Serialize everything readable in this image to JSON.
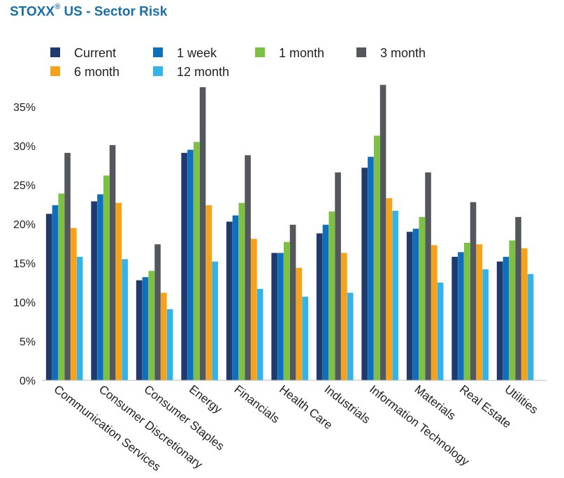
{
  "title": {
    "brand": "STOXX",
    "registered": "®",
    "rest": " US - Sector Risk"
  },
  "colors": {
    "title": "#1a6fa8",
    "series": [
      "#1f3a6e",
      "#0e6fbd",
      "#7dc142",
      "#54575c",
      "#f7a21b",
      "#34b3e8"
    ]
  },
  "chart_data": {
    "type": "bar",
    "title": "STOXX® US - Sector Risk",
    "xlabel": "",
    "ylabel": "",
    "ylim": [
      0,
      37.5
    ],
    "yticks": [
      0,
      5,
      10,
      15,
      20,
      25,
      30,
      35
    ],
    "ytick_labels": [
      "0%",
      "5%",
      "10%",
      "15%",
      "20%",
      "25%",
      "30%",
      "35%"
    ],
    "grid": false,
    "legend_position": "top",
    "categories": [
      "Communication Services",
      "Consumer Discretionary",
      "Consumer Staples",
      "Energy",
      "Financials",
      "Health Care",
      "Industrials",
      "Information Technology",
      "Materials",
      "Real Estate",
      "Utilities"
    ],
    "series": [
      {
        "name": "Current",
        "values": [
          21.3,
          22.9,
          12.8,
          29.1,
          20.3,
          16.3,
          18.8,
          27.2,
          19.0,
          15.8,
          15.2
        ]
      },
      {
        "name": "1 week",
        "values": [
          22.4,
          23.8,
          13.2,
          29.5,
          21.1,
          16.3,
          19.9,
          28.6,
          19.4,
          16.4,
          15.8
        ]
      },
      {
        "name": "1 month",
        "values": [
          23.9,
          26.2,
          14.0,
          30.5,
          22.7,
          17.7,
          21.6,
          31.3,
          20.9,
          17.6,
          17.9
        ]
      },
      {
        "name": "3 month",
        "values": [
          29.1,
          30.1,
          17.4,
          37.5,
          28.8,
          19.9,
          26.6,
          37.8,
          26.6,
          22.8,
          20.9
        ]
      },
      {
        "name": "6 month",
        "values": [
          19.5,
          22.7,
          11.2,
          22.4,
          18.1,
          14.4,
          16.3,
          23.3,
          17.3,
          17.4,
          16.9
        ]
      },
      {
        "name": "12 month",
        "values": [
          15.8,
          15.5,
          9.1,
          15.2,
          11.7,
          10.7,
          11.2,
          21.7,
          12.5,
          14.2,
          13.6
        ]
      }
    ]
  }
}
